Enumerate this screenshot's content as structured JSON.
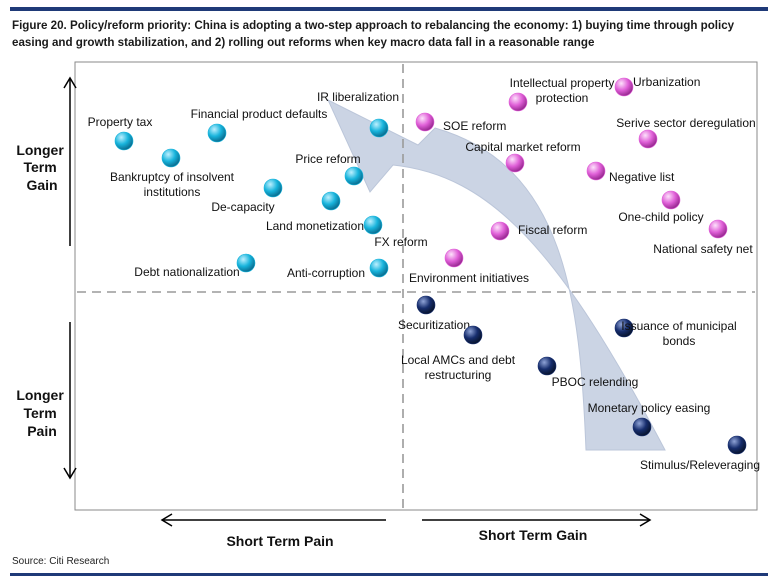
{
  "figure": {
    "title": "Figure 20. Policy/reform priority: China is adopting a two-step approach to rebalancing the economy: 1) buying time through policy easing and growth stabilization, and 2) rolling out reforms when key macro data fall in a reasonable range",
    "source": "Source: Citi Research"
  },
  "axes": {
    "y_top": [
      "Longer",
      "Term",
      "Gain"
    ],
    "y_bottom": [
      "Longer",
      "Term",
      "Pain"
    ],
    "x_left": "Short Term Pain",
    "x_right": "Short Term Gain"
  },
  "colors": {
    "cyan": "#18b4dc",
    "magenta": "#e060d8",
    "navy": "#172e6e",
    "arrow": "#c9d2e3",
    "rule": "#1f3a78"
  },
  "items": [
    {
      "group": "cyan",
      "label": [
        "Property tax"
      ]
    },
    {
      "group": "cyan",
      "label": [
        "Financial product defaults"
      ]
    },
    {
      "group": "cyan",
      "label": [
        "IR liberalization"
      ]
    },
    {
      "group": "cyan",
      "label": [
        "Bankruptcy of insolvent",
        "institutions"
      ]
    },
    {
      "group": "cyan",
      "label": [
        "Price reform"
      ]
    },
    {
      "group": "cyan",
      "label": [
        "De-capacity"
      ]
    },
    {
      "group": "cyan",
      "label": [
        "Land monetization"
      ]
    },
    {
      "group": "cyan",
      "label": [
        "FX reform"
      ]
    },
    {
      "group": "cyan",
      "label": [
        "Debt nationalization"
      ]
    },
    {
      "group": "cyan",
      "label": [
        "Anti-corruption"
      ]
    },
    {
      "group": "magenta",
      "label": [
        "SOE reform"
      ]
    },
    {
      "group": "magenta",
      "label": [
        "Intellectual property",
        "protection"
      ]
    },
    {
      "group": "magenta",
      "label": [
        "Urbanization"
      ]
    },
    {
      "group": "magenta",
      "label": [
        "Serive sector deregulation"
      ]
    },
    {
      "group": "magenta",
      "label": [
        "Capital market reform"
      ]
    },
    {
      "group": "magenta",
      "label": [
        "Negative list"
      ]
    },
    {
      "group": "magenta",
      "label": [
        "One-child policy"
      ]
    },
    {
      "group": "magenta",
      "label": [
        "National safety net"
      ]
    },
    {
      "group": "magenta",
      "label": [
        "Fiscal reform"
      ]
    },
    {
      "group": "magenta",
      "label": [
        "Environment initiatives"
      ]
    },
    {
      "group": "navy",
      "label": [
        "Securitization"
      ]
    },
    {
      "group": "navy",
      "label": [
        "Local AMCs and debt",
        "restructuring"
      ]
    },
    {
      "group": "navy",
      "label": [
        "PBOC relending"
      ]
    },
    {
      "group": "navy",
      "label": [
        "Issuance of municipal",
        "bonds"
      ]
    },
    {
      "group": "navy",
      "label": [
        "Monetary policy easing"
      ]
    },
    {
      "group": "navy",
      "label": [
        "Stimulus/Releveraging"
      ]
    }
  ]
}
